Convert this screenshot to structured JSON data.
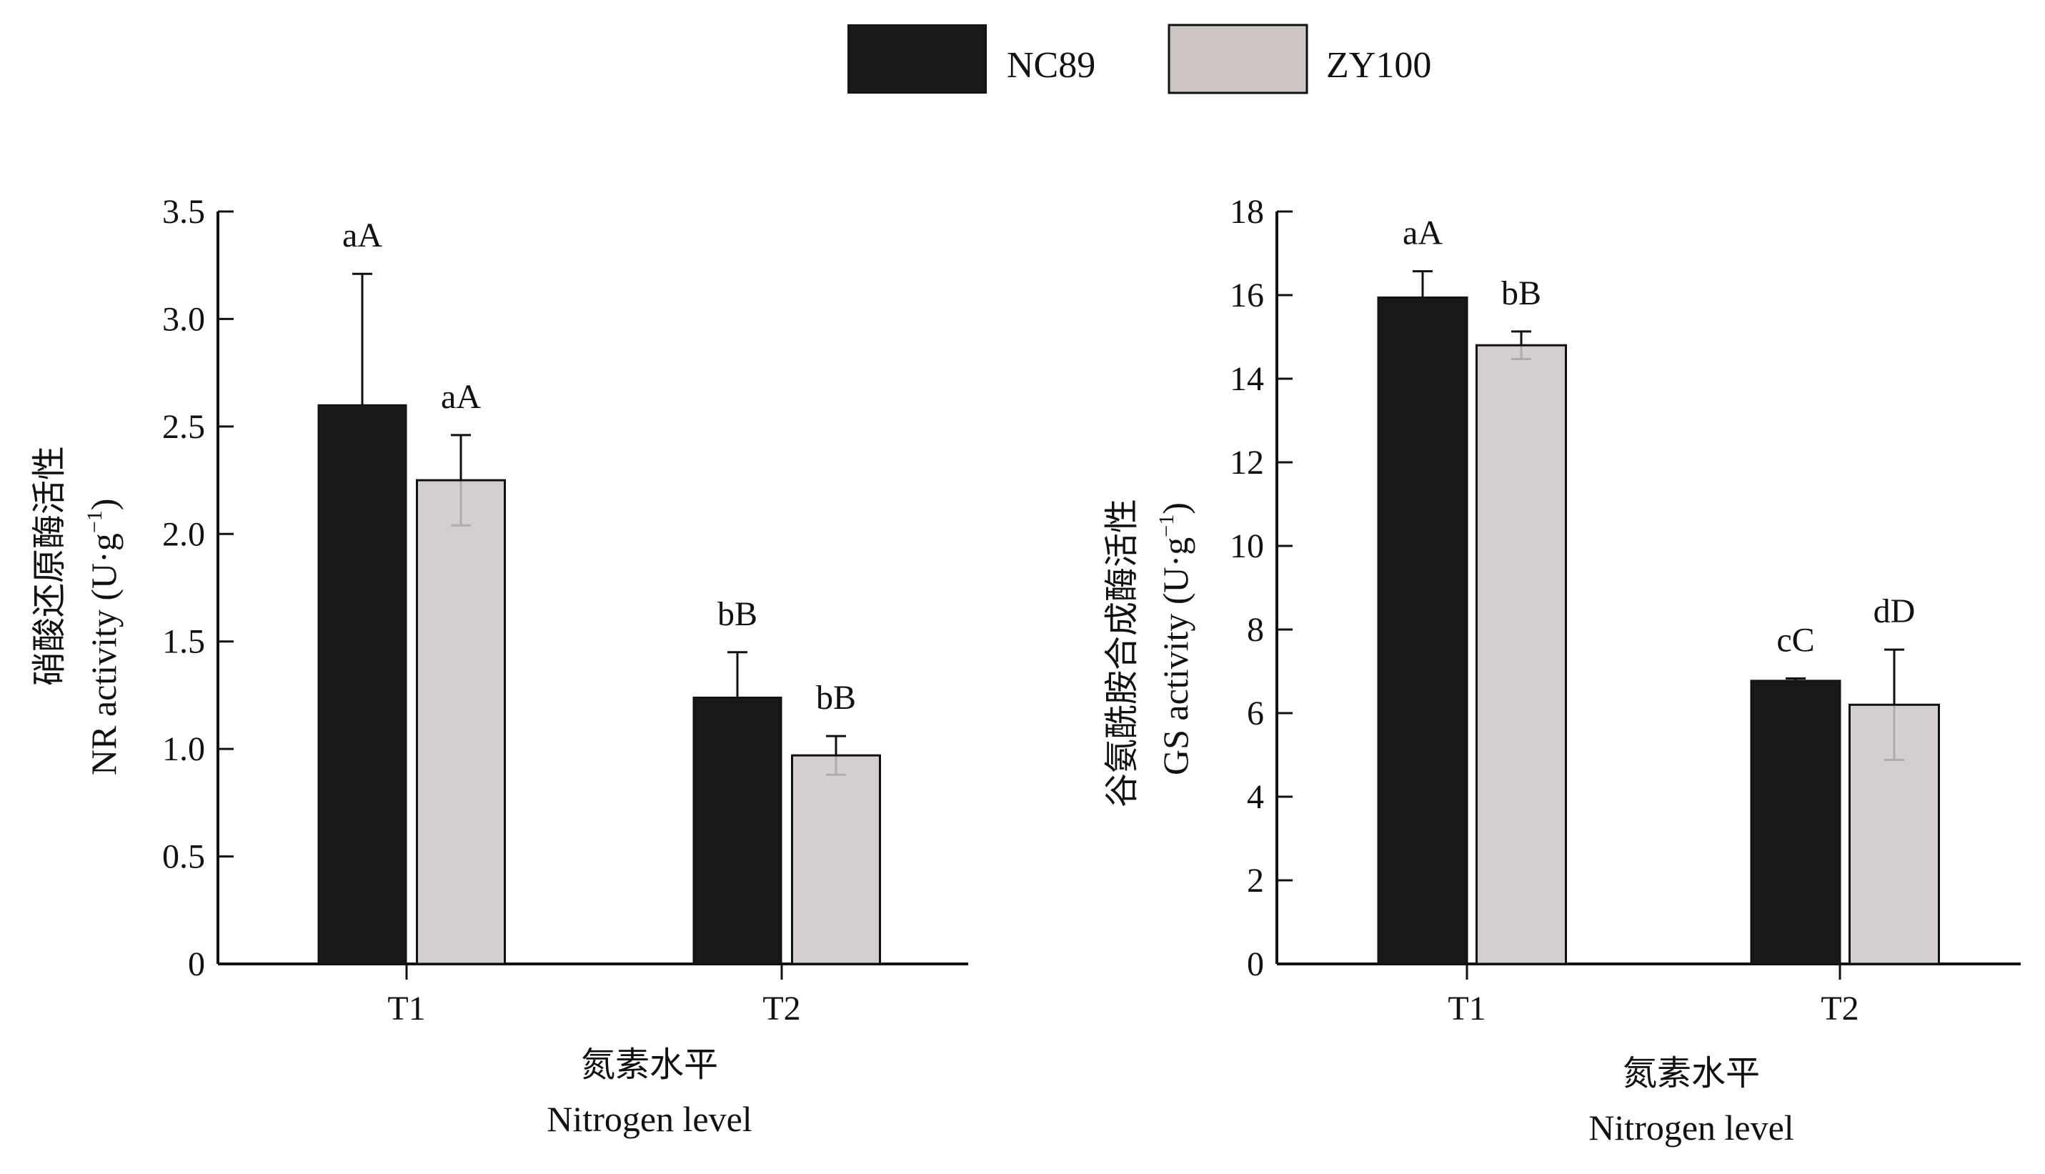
{
  "legend": {
    "items": [
      {
        "label": "NC89",
        "color": "#1a1717"
      },
      {
        "label": "ZY100",
        "color": "#cdc6c5"
      }
    ]
  },
  "chart_data": [
    {
      "type": "bar",
      "title": "",
      "ylabel_cn": "硝酸还原酶活性",
      "ylabel_en": "NR activity (U·g",
      "ylabel_unit_sup": "−1",
      "ylabel_en_close": ")",
      "xlabel_cn": "氮素水平",
      "xlabel_en": "Nitrogen level",
      "categories": [
        "T1",
        "T2"
      ],
      "ylim": [
        0,
        3.5
      ],
      "yticks": [
        0,
        0.5,
        1.0,
        1.5,
        2.0,
        2.5,
        3.0,
        3.5
      ],
      "ytick_labels": [
        "0",
        "0.5",
        "1.0",
        "1.5",
        "2.0",
        "2.5",
        "3.0",
        "3.5"
      ],
      "series": [
        {
          "name": "NC89",
          "values": [
            2.6,
            1.24
          ],
          "errors": [
            0.61,
            0.21
          ],
          "labels": [
            "aA",
            "bB"
          ]
        },
        {
          "name": "ZY100",
          "values": [
            2.25,
            0.97
          ],
          "errors": [
            0.21,
            0.09
          ],
          "labels": [
            "aA",
            "bB"
          ]
        }
      ]
    },
    {
      "type": "bar",
      "title": "",
      "ylabel_cn": "谷氨酰胺合成酶活性",
      "ylabel_en": "GS activity (U·g",
      "ylabel_unit_sup": "−1",
      "ylabel_en_close": ")",
      "xlabel_cn": "氮素水平",
      "xlabel_en": "Nitrogen level",
      "categories": [
        "T1",
        "T2"
      ],
      "ylim": [
        0,
        18
      ],
      "yticks": [
        0,
        2,
        4,
        6,
        8,
        10,
        12,
        14,
        16,
        18
      ],
      "ytick_labels": [
        "0",
        "2",
        "4",
        "6",
        "8",
        "10",
        "12",
        "14",
        "16",
        "18"
      ],
      "series": [
        {
          "name": "NC89",
          "values": [
            15.95,
            6.78
          ],
          "errors": [
            0.62,
            0.05
          ],
          "labels": [
            "aA",
            "cC"
          ]
        },
        {
          "name": "ZY100",
          "values": [
            14.8,
            6.2
          ],
          "errors": [
            0.33,
            1.32
          ],
          "labels": [
            "bB",
            "dD"
          ]
        }
      ]
    }
  ]
}
